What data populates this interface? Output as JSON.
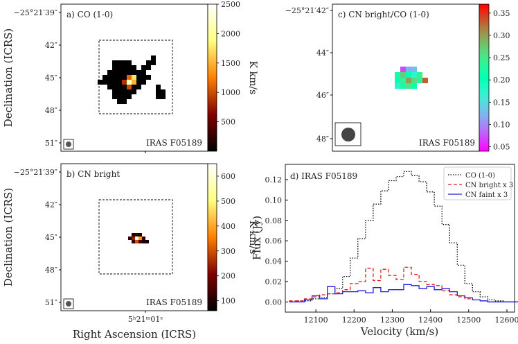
{
  "figure": {
    "source_label": "IRAS F05189"
  },
  "chart_data": [
    {
      "id": "a",
      "type": "heatmap",
      "panel_label": "a) CO (1-0)",
      "source_label": "IRAS F05189",
      "ylabel": "Declination (ICRS)",
      "y_ticks": [
        "−25°21′39″",
        "42″",
        "45″",
        "48″",
        "51″"
      ],
      "colorbar": {
        "label": "K km/s",
        "range": [
          0,
          2500
        ],
        "ticks": [
          "500",
          "1000",
          "1500",
          "2000",
          "2500"
        ],
        "colormap": "afmhot"
      },
      "peak_value": 2500,
      "has_beam": true,
      "has_box": true
    },
    {
      "id": "b",
      "type": "heatmap",
      "panel_label": "b) CN bright",
      "source_label": "IRAS F05189",
      "xlabel": "Right Ascension (ICRS)",
      "ylabel": "Declination (ICRS)",
      "x_ticks": [
        "5ʰ21ᵐ01ˢ"
      ],
      "y_ticks": [
        "−25°21′39″",
        "42″",
        "45″",
        "48″",
        "51″"
      ],
      "colorbar": {
        "label": "K km/s",
        "range": [
          60,
          650
        ],
        "ticks": [
          "100",
          "200",
          "300",
          "400",
          "500",
          "600"
        ],
        "colormap": "afmhot"
      },
      "has_beam": true,
      "has_box": true
    },
    {
      "id": "c",
      "type": "heatmap",
      "panel_label": "c) CN bright/CO (1-0)",
      "source_label": "IRAS F05189",
      "y_ticks": [
        "−25°21′42″",
        "44″",
        "46″",
        "48″"
      ],
      "colorbar": {
        "label": "",
        "range": [
          0.04,
          0.37
        ],
        "ticks": [
          "0.05",
          "0.10",
          "0.15",
          "0.20",
          "0.25",
          "0.30",
          "0.35"
        ],
        "colormap": "rainbow"
      },
      "pixels": [
        [
          0,
          0,
          0.07
        ],
        [
          1,
          0,
          0.12
        ],
        [
          2,
          0,
          0.13
        ],
        [
          -1,
          1,
          0.22
        ],
        [
          0,
          1,
          0.27
        ],
        [
          1,
          1,
          0.2
        ],
        [
          2,
          1,
          0.17
        ],
        [
          3,
          1,
          0.24
        ],
        [
          -1,
          2,
          0.2
        ],
        [
          0,
          2,
          0.24
        ],
        [
          1,
          2,
          0.3
        ],
        [
          2,
          2,
          0.26
        ],
        [
          3,
          2,
          0.23
        ],
        [
          4,
          2,
          0.33
        ],
        [
          -1,
          3,
          0.18
        ],
        [
          0,
          3,
          0.22
        ],
        [
          1,
          3,
          0.25
        ],
        [
          2,
          3,
          0.21
        ]
      ],
      "has_beam": true
    },
    {
      "id": "d",
      "type": "line",
      "panel_label": "d) IRAS F05189",
      "xlabel": "Velocity (km/s)",
      "ylabel": "Flux (Jy)",
      "xlim": [
        12020,
        12620
      ],
      "ylim": [
        -0.01,
        0.135
      ],
      "x_ticks": [
        12100,
        12200,
        12300,
        12400,
        12500,
        12600
      ],
      "y_ticks": [
        "0.00",
        "0.02",
        "0.04",
        "0.06",
        "0.08",
        "0.10",
        "0.12"
      ],
      "y_tick_values": [
        0,
        0.02,
        0.04,
        0.06,
        0.08,
        0.1,
        0.12
      ],
      "legend_position": "top-right",
      "step_width": 20,
      "x_start": 12040,
      "series": [
        {
          "name": "CO (1-0)",
          "color": "#000000",
          "style": "dotted",
          "values": [
            0.0,
            0.001,
            0.001,
            0.003,
            0.004,
            0.008,
            0.013,
            0.025,
            0.043,
            0.062,
            0.08,
            0.096,
            0.109,
            0.119,
            0.123,
            0.128,
            0.124,
            0.118,
            0.108,
            0.094,
            0.076,
            0.058,
            0.036,
            0.018,
            0.01,
            0.005,
            0.002,
            0.001,
            0.0,
            0.0
          ]
        },
        {
          "name": "CN bright x 3",
          "color": "#e41a1c",
          "style": "dashed",
          "values": [
            0.001,
            0.001,
            0.003,
            0.005,
            0.007,
            0.008,
            0.009,
            0.012,
            0.018,
            0.02,
            0.033,
            0.021,
            0.032,
            0.026,
            0.022,
            0.034,
            0.027,
            0.02,
            0.017,
            0.016,
            0.011,
            0.007,
            0.005,
            0.003,
            0.002,
            0.001,
            0.0,
            0.0,
            0.0,
            0.0
          ]
        },
        {
          "name": "CN faint x 3",
          "color": "#1f1fe0",
          "style": "solid",
          "values": [
            0.0,
            0.0,
            0.002,
            0.006,
            0.003,
            0.015,
            0.008,
            0.01,
            0.01,
            0.011,
            0.009,
            0.014,
            0.01,
            0.012,
            0.012,
            0.017,
            0.016,
            0.013,
            0.015,
            0.012,
            0.013,
            0.01,
            0.006,
            0.004,
            0.002,
            0.001,
            0.0,
            0.0,
            0.0,
            0.0
          ]
        }
      ]
    }
  ]
}
